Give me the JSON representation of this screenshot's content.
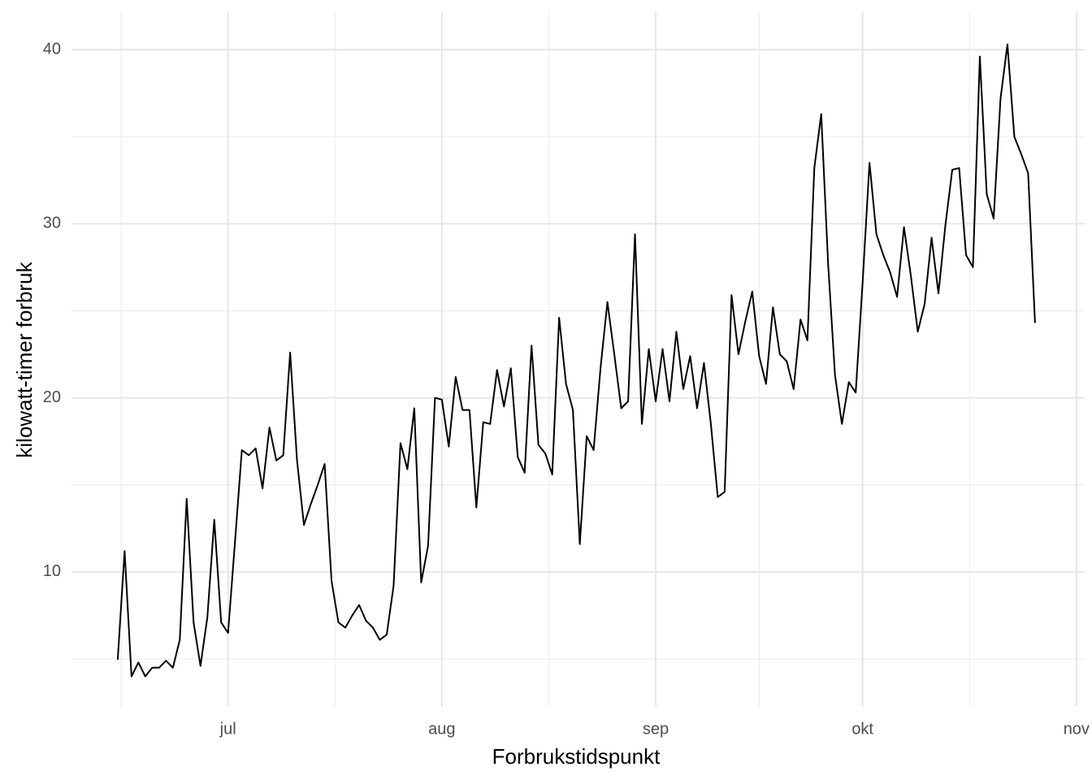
{
  "chart_data": {
    "type": "line",
    "xlabel": "Forbrukstidspunkt",
    "ylabel": "kilowatt-timer forbruk",
    "x": [
      166,
      167,
      168,
      169,
      170,
      171,
      172,
      173,
      174,
      175,
      176,
      177,
      178,
      179,
      180,
      181,
      182,
      183,
      184,
      185,
      186,
      187,
      188,
      189,
      190,
      191,
      192,
      193,
      194,
      195,
      196,
      197,
      198,
      199,
      200,
      201,
      202,
      203,
      204,
      205,
      206,
      207,
      208,
      209,
      210,
      211,
      212,
      213,
      214,
      215,
      216,
      217,
      218,
      219,
      220,
      221,
      222,
      223,
      224,
      225,
      226,
      227,
      228,
      229,
      230,
      231,
      232,
      233,
      234,
      235,
      236,
      237,
      238,
      239,
      240,
      241,
      242,
      243,
      244,
      245,
      246,
      247,
      248,
      249,
      250,
      251,
      252,
      253,
      254,
      255,
      256,
      257,
      258,
      259,
      260,
      261,
      262,
      263,
      264,
      265,
      266,
      267,
      268,
      269,
      270,
      271,
      272,
      273,
      274,
      275,
      276,
      277,
      278,
      279,
      280,
      281,
      282,
      283,
      284,
      285,
      286,
      287,
      288,
      289,
      290,
      291,
      292,
      293,
      294,
      295,
      296,
      297,
      298,
      299
    ],
    "series": [
      {
        "name": "forbruk",
        "color": "#000000",
        "values": [
          4.96,
          11.2,
          4.0,
          4.8,
          4.0,
          4.5,
          4.5,
          4.9,
          4.5,
          6.1,
          14.2,
          7.1,
          4.6,
          7.4,
          13.0,
          7.1,
          6.5,
          11.7,
          17.0,
          16.7,
          17.1,
          14.8,
          18.3,
          16.4,
          16.7,
          22.6,
          16.4,
          12.7,
          13.9,
          15.0,
          16.2,
          9.5,
          7.1,
          6.8,
          7.5,
          8.1,
          7.2,
          6.8,
          6.1,
          6.4,
          9.2,
          17.4,
          15.9,
          19.4,
          9.4,
          11.5,
          20.0,
          19.9,
          17.2,
          21.2,
          19.3,
          19.3,
          13.7,
          18.6,
          18.5,
          21.6,
          19.5,
          21.7,
          16.6,
          15.7,
          23.0,
          17.3,
          16.8,
          15.6,
          24.6,
          20.8,
          19.3,
          11.6,
          17.8,
          17.0,
          21.7,
          25.5,
          22.5,
          19.4,
          19.8,
          29.4,
          18.5,
          22.8,
          19.8,
          22.8,
          19.8,
          23.8,
          20.5,
          22.4,
          19.4,
          22.0,
          18.5,
          14.3,
          14.6,
          25.9,
          22.5,
          24.4,
          26.1,
          22.4,
          20.8,
          25.2,
          22.5,
          22.1,
          20.5,
          24.5,
          23.3,
          33.2,
          36.3,
          27.7,
          21.3,
          18.5,
          20.9,
          20.3,
          26.6,
          33.5,
          29.4,
          28.2,
          27.2,
          25.8,
          29.8,
          27.0,
          23.8,
          25.4,
          29.2,
          26.0,
          29.9,
          33.1,
          33.2,
          28.2,
          27.5,
          39.6,
          31.7,
          30.3,
          37.2,
          40.3,
          35.0,
          34.0,
          32.9,
          24.3
        ]
      }
    ],
    "xlim": [
      159.3,
      306.2
    ],
    "xticks": [
      {
        "value": 182,
        "label": "jul"
      },
      {
        "value": 213,
        "label": "aug"
      },
      {
        "value": 244,
        "label": "sep"
      },
      {
        "value": 274,
        "label": "okt"
      },
      {
        "value": 305,
        "label": "nov"
      }
    ],
    "x_minor_grid": [
      166.5,
      197.5,
      228.5,
      259,
      289.5
    ],
    "ylim": [
      2.25,
      42.15
    ],
    "yticks": [
      10,
      20,
      30,
      40
    ],
    "y_minor_grid": [
      5,
      15,
      25,
      35
    ],
    "grid": true
  }
}
